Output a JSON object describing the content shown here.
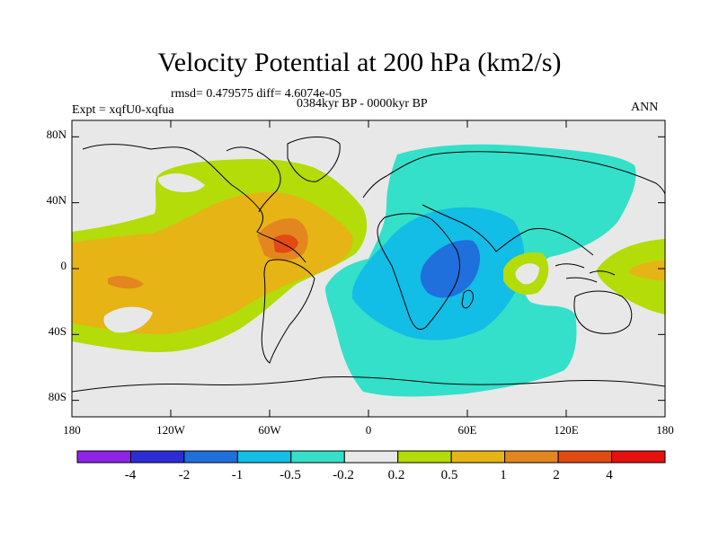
{
  "title": "Velocity Potential at 200 hPa (km2/s)",
  "stats_line": "rmsd= 0.479575 diff= 4.6074e-05",
  "experiment": "Expt = xqfU0-xqfua",
  "period": "0384kyr BP - 0000kyr BP",
  "season": "ANN",
  "map": {
    "projection": "cylindrical equidistant",
    "lon_range": [
      -180,
      180
    ],
    "lat_range": [
      -90,
      90
    ],
    "lat_ticks": [
      {
        "lat": 80,
        "label": "80N"
      },
      {
        "lat": 40,
        "label": "40N"
      },
      {
        "lat": 0,
        "label": "0"
      },
      {
        "lat": -40,
        "label": "40S"
      },
      {
        "lat": -80,
        "label": "80S"
      }
    ],
    "lon_ticks": [
      {
        "lon": -180,
        "label": "180"
      },
      {
        "lon": -120,
        "label": "120W"
      },
      {
        "lon": -60,
        "label": "60W"
      },
      {
        "lon": 0,
        "label": "0"
      },
      {
        "lon": 60,
        "label": "60E"
      },
      {
        "lon": 120,
        "label": "120E"
      },
      {
        "lon": 180,
        "label": "180"
      }
    ],
    "background_color": "#e8e8e8",
    "coastline_color": "#000000"
  },
  "colorbar": {
    "colors": [
      "#8f23e8",
      "#2d2dd6",
      "#1f6fdc",
      "#12bde6",
      "#34e0c9",
      "#e8e8e8",
      "#b3dc09",
      "#e6b414",
      "#e3861f",
      "#e14a12",
      "#e6100f"
    ],
    "labels": [
      "-4",
      "-2",
      "-1",
      "-0.5",
      "-0.2",
      "0.2",
      "0.5",
      "1",
      "2",
      "4"
    ]
  }
}
